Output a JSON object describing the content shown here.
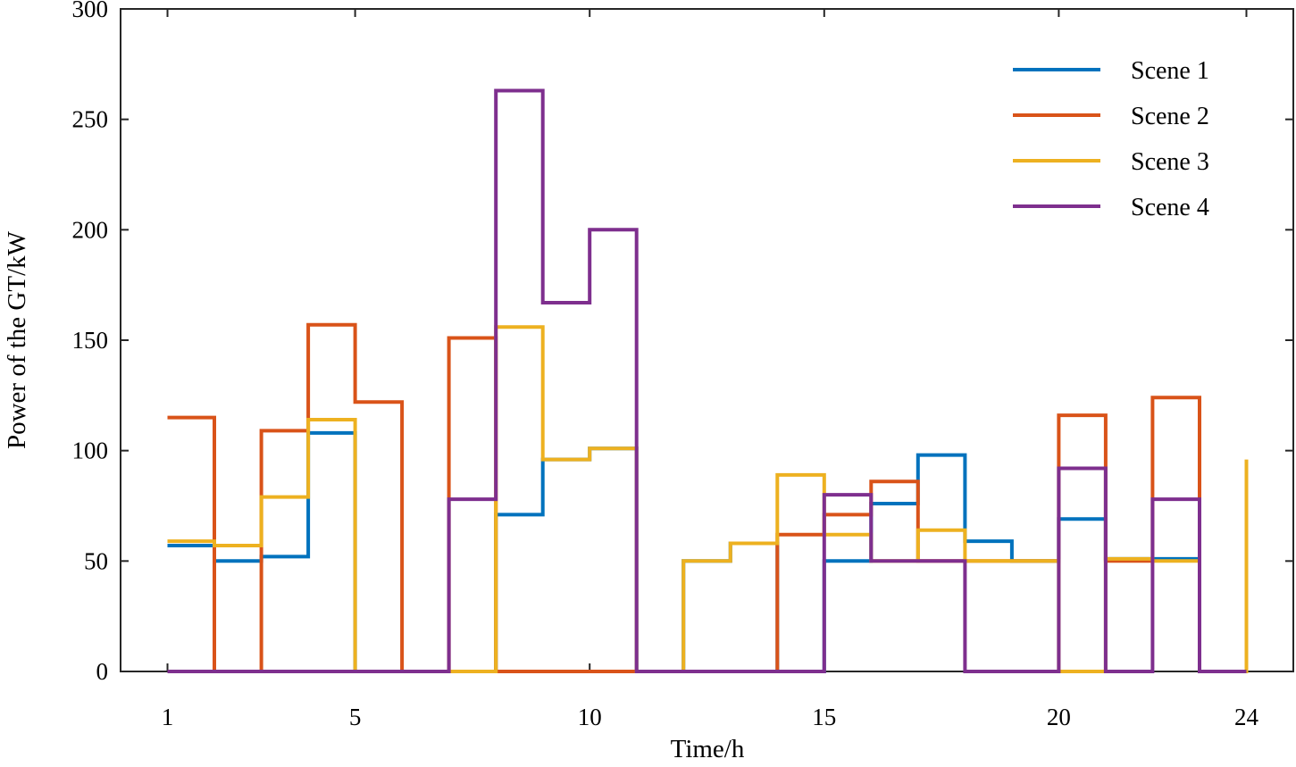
{
  "chart_data": {
    "type": "line",
    "step": true,
    "title": "",
    "xlabel": "Time/h",
    "ylabel": "Power of the GT/kW",
    "xlim": [
      0,
      25
    ],
    "ylim": [
      0,
      300
    ],
    "xticks": [
      1,
      5,
      10,
      15,
      20,
      24
    ],
    "xtick_labels": [
      "1",
      "5",
      "10",
      "15",
      "20",
      "24"
    ],
    "yticks": [
      0,
      50,
      100,
      150,
      200,
      250,
      300
    ],
    "ytick_labels": [
      "0",
      "50",
      "100",
      "150",
      "200",
      "250",
      "300"
    ],
    "legend_position": "top-right",
    "x": [
      1,
      2,
      3,
      4,
      5,
      6,
      7,
      8,
      9,
      10,
      11,
      12,
      13,
      14,
      15,
      16,
      17,
      18,
      19,
      20,
      21,
      22,
      23,
      24
    ],
    "series": [
      {
        "name": "Scene 1",
        "color": "#0072BD",
        "values": [
          57,
          50,
          52,
          108,
          0,
          0,
          0,
          71,
          96,
          101,
          0,
          50,
          58,
          0,
          50,
          76,
          98,
          59,
          50,
          69,
          51,
          51,
          0,
          0
        ]
      },
      {
        "name": "Scene 2",
        "color": "#D95319",
        "values": [
          115,
          0,
          109,
          157,
          122,
          0,
          151,
          0,
          0,
          0,
          0,
          0,
          0,
          62,
          71,
          86,
          50,
          50,
          50,
          116,
          50,
          124,
          0,
          0
        ]
      },
      {
        "name": "Scene 3",
        "color": "#EDB120",
        "values": [
          59,
          57,
          79,
          114,
          0,
          0,
          0,
          156,
          96,
          101,
          0,
          50,
          58,
          89,
          62,
          50,
          64,
          50,
          50,
          0,
          51,
          50,
          0,
          96
        ]
      },
      {
        "name": "Scene 4",
        "color": "#7E2F8E",
        "values": [
          0,
          0,
          0,
          0,
          0,
          0,
          78,
          263,
          167,
          200,
          0,
          0,
          0,
          0,
          80,
          50,
          50,
          0,
          0,
          92,
          0,
          78,
          0,
          0
        ]
      }
    ]
  }
}
